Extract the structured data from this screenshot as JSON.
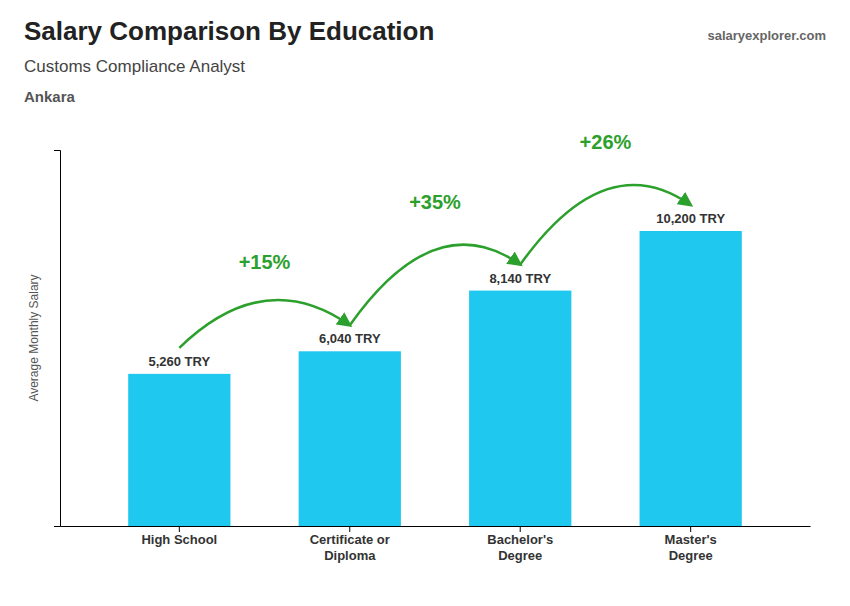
{
  "chart_data": {
    "type": "bar",
    "title": "Salary Comparison By Education",
    "subtitle": "Customs Compliance Analyst",
    "annotations": [
      "Ankara",
      "salaryexplorer.com"
    ],
    "change_labels": [
      "+15%",
      "+35%",
      "+26%"
    ],
    "y_label": "Average Monthly Salary",
    "categories": [
      "High School",
      "Certificate or\nDiploma",
      "Bachelor's\nDegree",
      "Master's\nDegree"
    ],
    "values": [
      5260,
      6040,
      8140,
      10200
    ],
    "value_labels": [
      "5,260 TRY",
      "6,040 TRY",
      "8,140 TRY",
      "10,200 TRY"
    ],
    "data_labels": true,
    "color": "#1EC8EE",
    "ylim": [
      0,
      13000
    ],
    "yticks": [],
    "tick_labels": "x",
    "grid": false
  }
}
